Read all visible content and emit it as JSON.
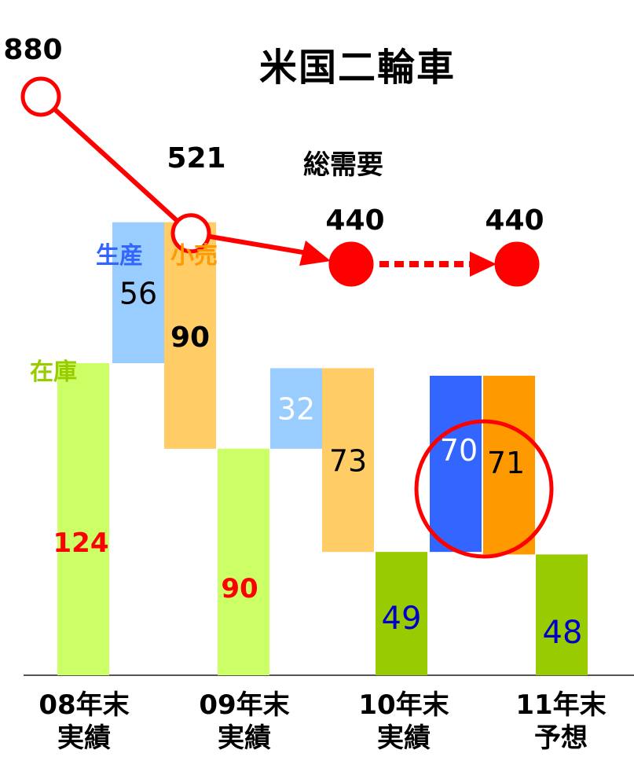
{
  "title": "米国二輪車",
  "chart_data": {
    "type": "bar",
    "title": "米国二輪車",
    "categories": [
      {
        "line1": "08年末",
        "line2": "実績"
      },
      {
        "line1": "09年末",
        "line2": "実績"
      },
      {
        "line1": "10年末",
        "line2": "実績"
      },
      {
        "line1": "11年末",
        "line2": "予想"
      }
    ],
    "demand": {
      "label": "総需要",
      "values": [
        880,
        521,
        440,
        440
      ],
      "labels": [
        "880",
        "521",
        "440",
        "440"
      ],
      "actual_count": 2,
      "forecast_from_index": 2
    },
    "inventory": {
      "label": "在庫",
      "values": [
        124,
        90,
        49,
        48
      ]
    },
    "production": {
      "label": "生産",
      "values": [
        56,
        32,
        70
      ]
    },
    "retail": {
      "label": "小売",
      "values": [
        90,
        73,
        71
      ]
    },
    "highlight": {
      "period": 2,
      "note": "circle around 生産 70 / 小売 71"
    }
  },
  "colors": {
    "demand": "#ff0000",
    "inventory_past": "#ccff66",
    "inventory_recent": "#99cc00",
    "production_past": "#99ccff",
    "production_recent": "#3366ff",
    "retail_past": "#ffcc66",
    "retail_recent": "#ff9900",
    "legend_inventory": "#99cc00",
    "legend_production": "#3366ff",
    "legend_retail": "#ff9900",
    "value_red": "#ff0000",
    "value_blue": "#0000cc",
    "value_black": "#000000"
  }
}
